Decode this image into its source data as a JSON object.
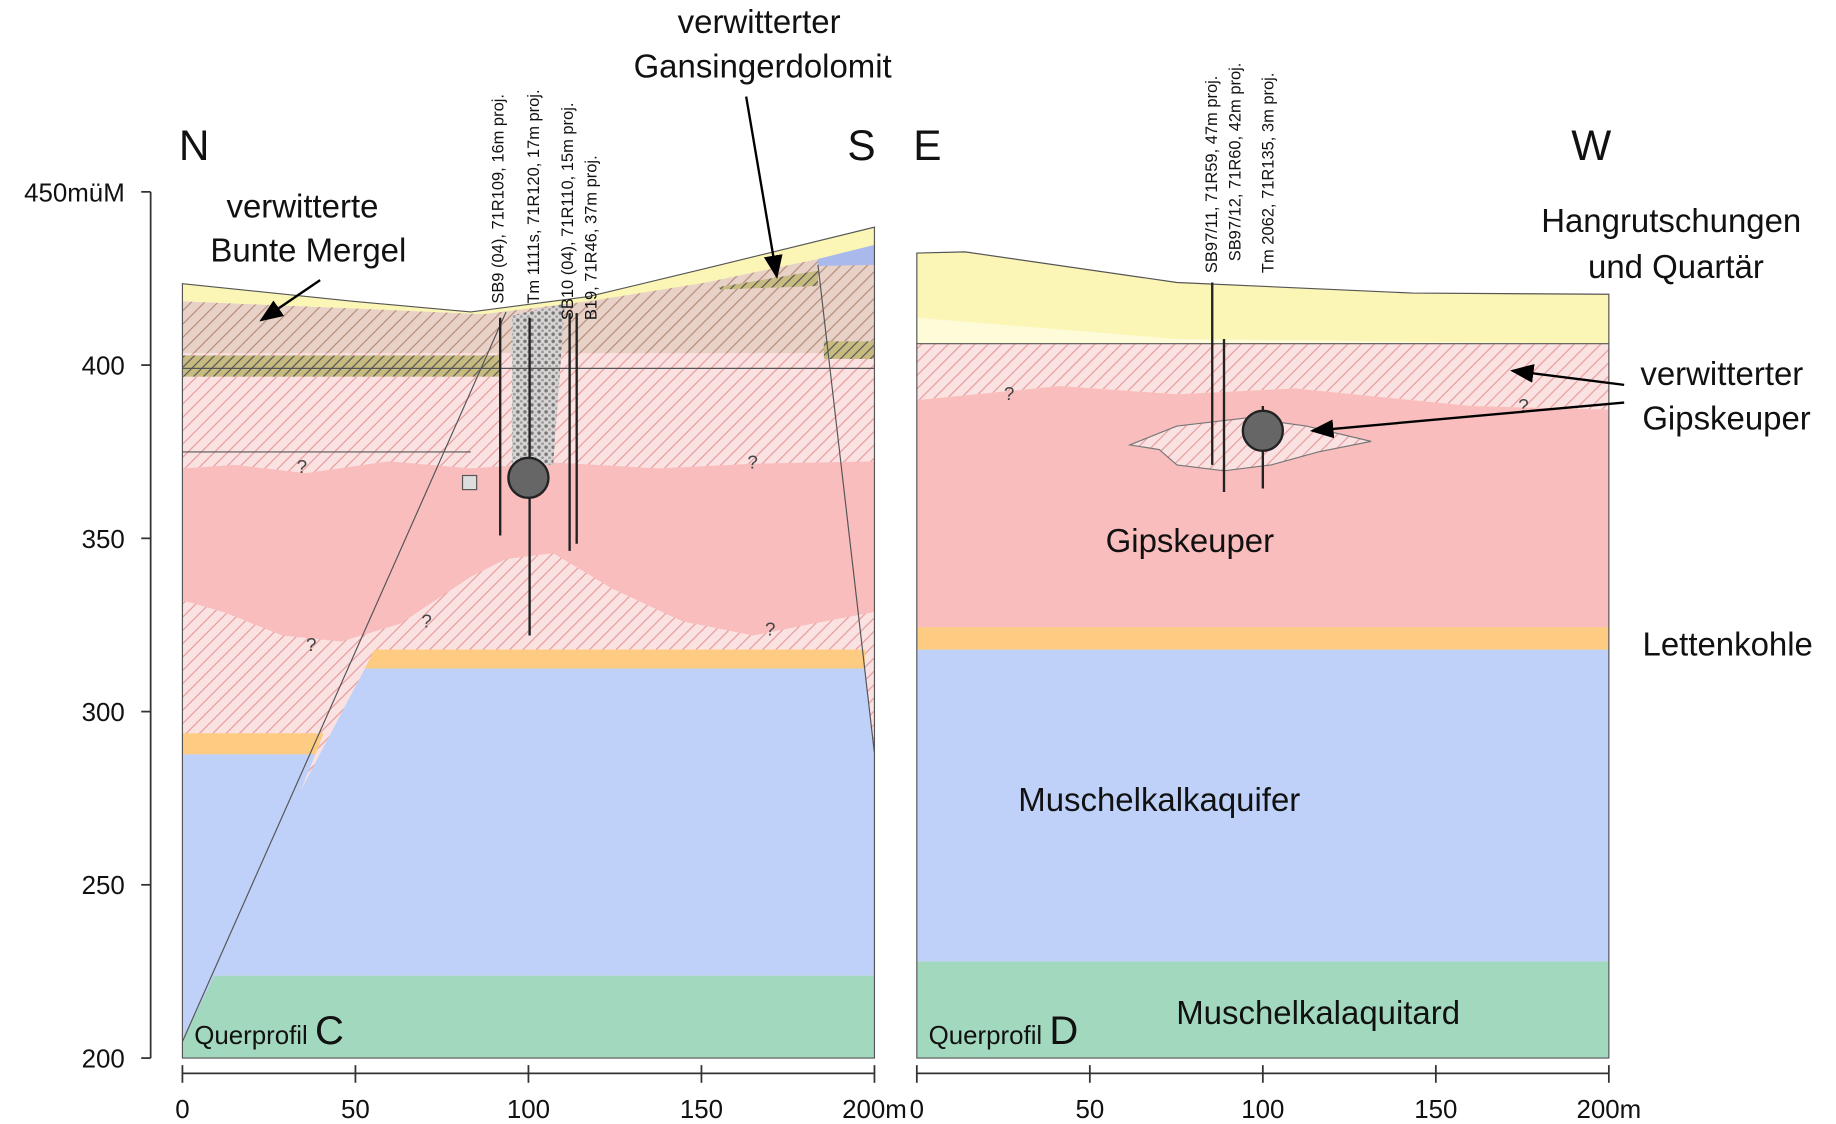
{
  "y_ticks": [
    "450müM",
    "400",
    "350",
    "300",
    "250",
    "200"
  ],
  "uncertain_marker": "?",
  "panels": [
    {
      "direction_left": "N",
      "direction_right": "S",
      "profile_prefix": "Querprofil",
      "profile_letter": "C",
      "boreholes": [
        "SB9 (04), 71R109, 16m proj.",
        "Tm 1111s, 71R120, 17m proj.",
        "SB10 (04), 71R110, 15m proj.",
        "B19, 71R46, 37m proj."
      ],
      "x_ticks": [
        "0",
        "50",
        "100",
        "150",
        "200m"
      ]
    },
    {
      "direction_left": "E",
      "direction_right": "W",
      "profile_prefix": "Querprofil",
      "profile_letter": "D",
      "boreholes": [
        "SB97/11, 71R59, 47m proj.",
        "SB97/12, 71R60, 42m proj.",
        "Tm 2062, 71R135, 3m proj."
      ],
      "x_ticks": [
        "0",
        "50",
        "100",
        "150",
        "200m"
      ]
    }
  ],
  "labels": {
    "weathered_bunte_mergel": [
      "verwitterte",
      "Bunte Mergel"
    ],
    "weathered_gansingerdolomit": [
      "verwitterter",
      "Gansingerdolomit"
    ],
    "quaternary": [
      "Hangrutschungen",
      "und Quartär"
    ],
    "weathered_gipskeuper": [
      "verwitterter",
      "Gipskeuper"
    ],
    "gipskeuper": "Gipskeuper",
    "lettenkohle": "Lettenkohle",
    "aquifer": "Muschelkalkaquifer",
    "aquitard": "Muschelkalaquitard"
  }
}
